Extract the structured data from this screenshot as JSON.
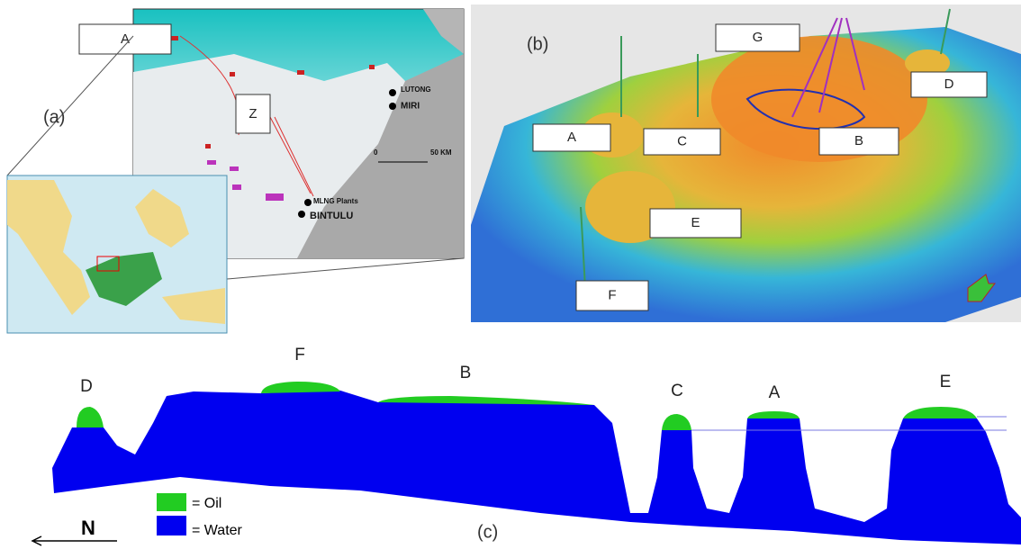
{
  "panel_a": {
    "label": "(a)",
    "boxes": [
      "A",
      "Z"
    ],
    "places": [
      "LUTONG",
      "MIRI",
      "MLNG Plants",
      "BINTULU"
    ],
    "scale": [
      "0",
      "50 KM"
    ]
  },
  "panel_b": {
    "label": "(b)",
    "boxes": [
      "G",
      "D",
      "A",
      "C",
      "B",
      "E",
      "F"
    ]
  },
  "panel_c": {
    "label": "(c)",
    "fields": [
      "D",
      "F",
      "B",
      "C",
      "A",
      "E"
    ],
    "legend": [
      "= Oil",
      "= Water"
    ],
    "north": "N"
  }
}
